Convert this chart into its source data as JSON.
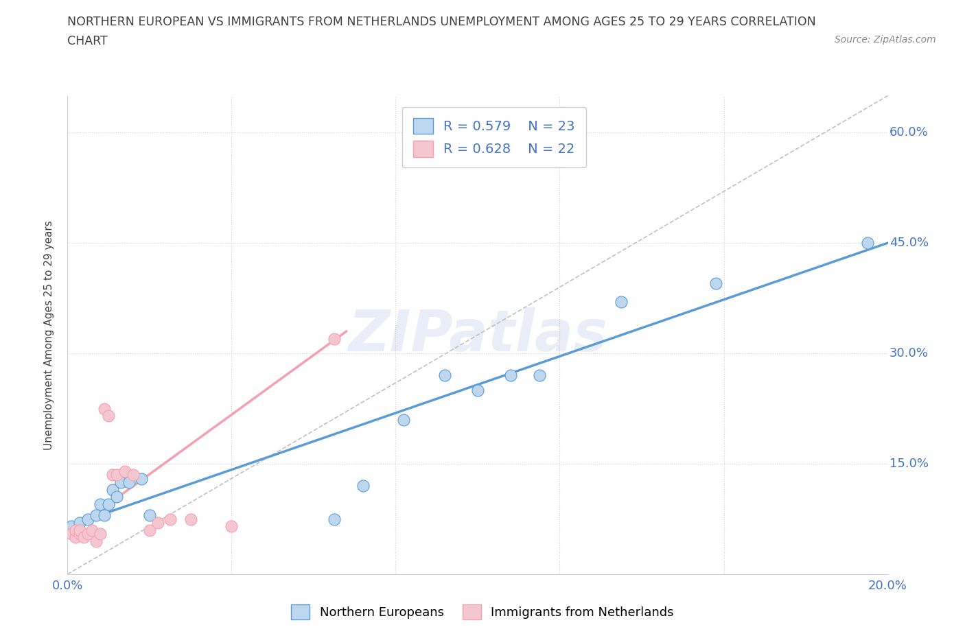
{
  "title_line1": "NORTHERN EUROPEAN VS IMMIGRANTS FROM NETHERLANDS UNEMPLOYMENT AMONG AGES 25 TO 29 YEARS CORRELATION",
  "title_line2": "CHART",
  "source": "Source: ZipAtlas.com",
  "ylabel": "Unemployment Among Ages 25 to 29 years",
  "xlim": [
    0.0,
    0.2
  ],
  "ylim": [
    0.0,
    0.65
  ],
  "xticks": [
    0.0,
    0.04,
    0.08,
    0.12,
    0.16,
    0.2
  ],
  "yticks": [
    0.0,
    0.15,
    0.3,
    0.45,
    0.6
  ],
  "blue_scatter_x": [
    0.001,
    0.003,
    0.005,
    0.007,
    0.008,
    0.009,
    0.01,
    0.011,
    0.012,
    0.013,
    0.015,
    0.018,
    0.02,
    0.065,
    0.072,
    0.082,
    0.092,
    0.1,
    0.108,
    0.115,
    0.135,
    0.158,
    0.195
  ],
  "blue_scatter_y": [
    0.065,
    0.07,
    0.075,
    0.08,
    0.095,
    0.08,
    0.095,
    0.115,
    0.105,
    0.125,
    0.125,
    0.13,
    0.08,
    0.075,
    0.12,
    0.21,
    0.27,
    0.25,
    0.27,
    0.27,
    0.37,
    0.395,
    0.45
  ],
  "blue_R": 0.579,
  "blue_N": 23,
  "pink_scatter_x": [
    0.001,
    0.002,
    0.002,
    0.003,
    0.003,
    0.004,
    0.005,
    0.006,
    0.007,
    0.008,
    0.009,
    0.01,
    0.011,
    0.012,
    0.014,
    0.016,
    0.02,
    0.022,
    0.025,
    0.03,
    0.04,
    0.065
  ],
  "pink_scatter_y": [
    0.055,
    0.05,
    0.06,
    0.055,
    0.06,
    0.05,
    0.055,
    0.06,
    0.045,
    0.055,
    0.225,
    0.215,
    0.135,
    0.135,
    0.14,
    0.135,
    0.06,
    0.07,
    0.075,
    0.075,
    0.065,
    0.32
  ],
  "pink_R": 0.628,
  "pink_N": 22,
  "blue_line_x": [
    0.0,
    0.2
  ],
  "blue_line_y": [
    0.065,
    0.45
  ],
  "pink_line_x": [
    0.0,
    0.068
  ],
  "pink_line_y": [
    0.055,
    0.33
  ],
  "diag_line_x": [
    0.0,
    0.2
  ],
  "diag_line_y": [
    0.0,
    0.65
  ],
  "blue_color": "#5b9bd5",
  "blue_fill": "#bdd7ee",
  "pink_color": "#f4a0b0",
  "pink_fill": "#f4c6cf",
  "watermark_color": "#4472c4",
  "background_color": "#ffffff",
  "grid_color": "#d0d0d0",
  "axis_label_color": "#4472c4",
  "text_color": "#404040",
  "legend_R_color": "#4472c4"
}
